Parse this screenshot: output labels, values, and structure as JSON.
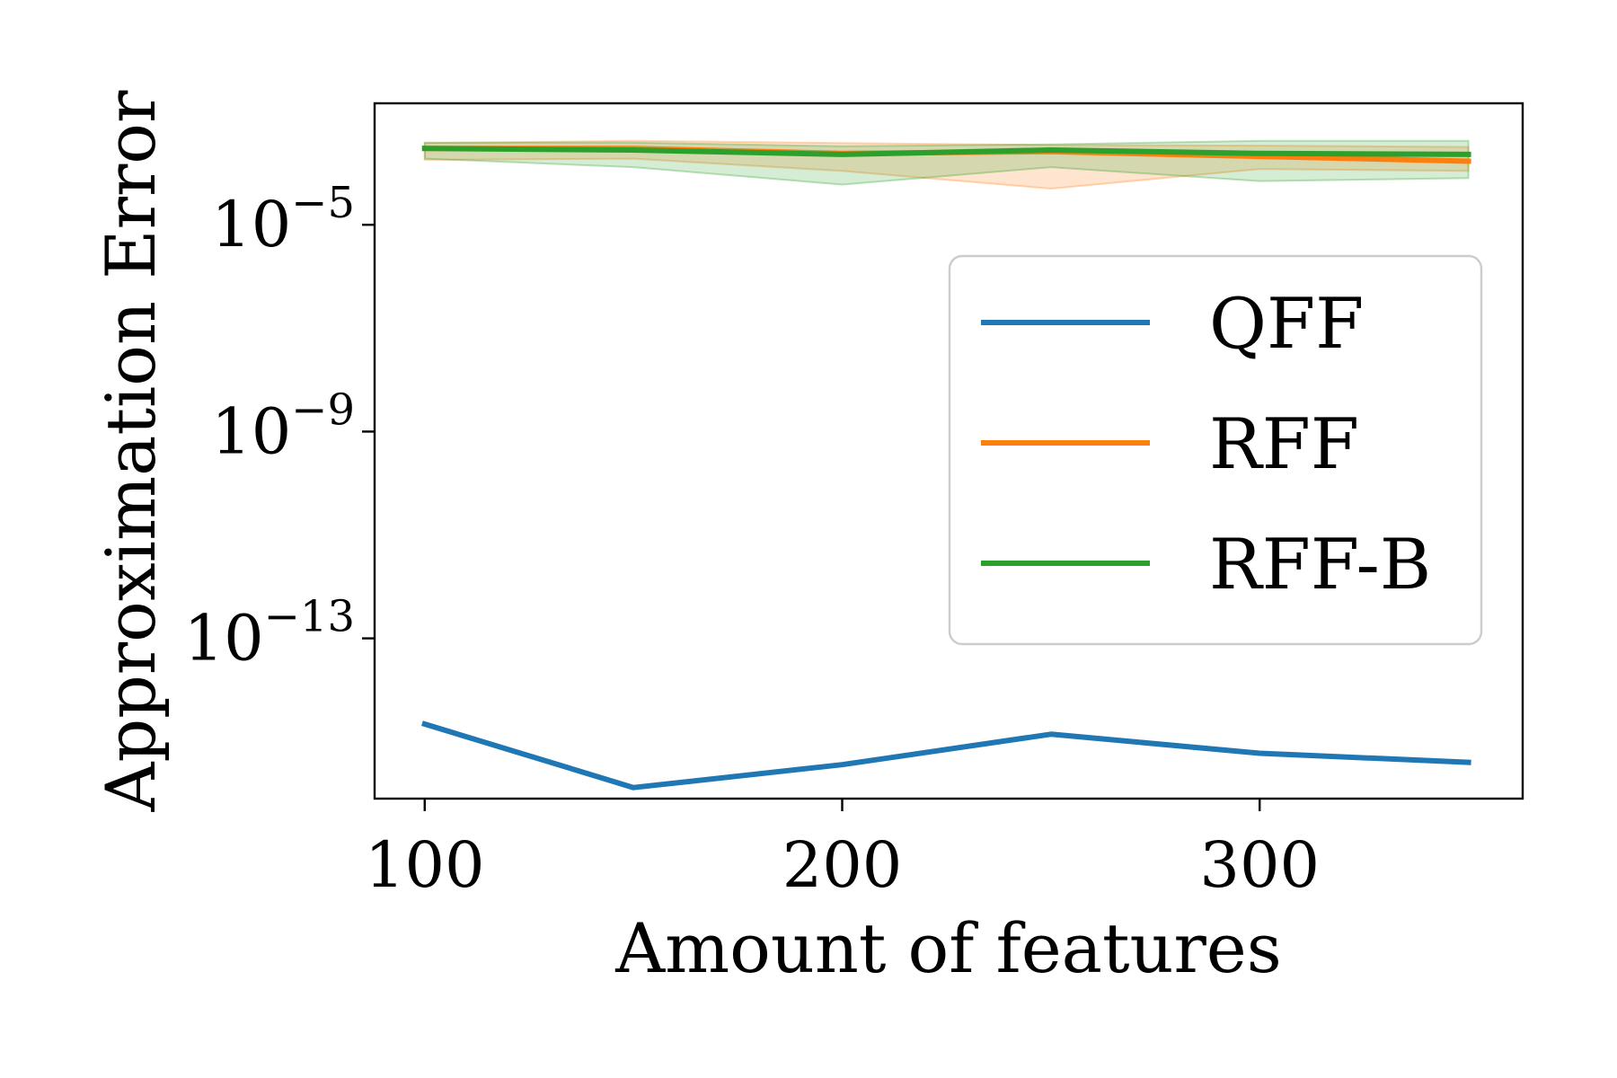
{
  "chart_data": {
    "type": "line",
    "title": "",
    "xlabel": "Amount of features",
    "ylabel": "Approximation Error",
    "x": [
      100,
      150,
      200,
      250,
      300,
      350
    ],
    "xlim": [
      88,
      363
    ],
    "xticks": [
      100,
      200,
      300
    ],
    "xtick_labels": [
      "100",
      "200",
      "300"
    ],
    "yscale": "log",
    "ylim_exp": [
      -16.1,
      -2.65
    ],
    "yticks_exp": [
      -5,
      -9,
      -13
    ],
    "ytick_labels": [
      {
        "base": "10",
        "exp": "−5"
      },
      {
        "base": "10",
        "exp": "−9"
      },
      {
        "base": "10",
        "exp": "−13"
      }
    ],
    "grid": false,
    "legend_position": "center-right",
    "series": [
      {
        "name": "QFF",
        "color": "#1f77b4",
        "y": [
          2.2e-15,
          1.3e-16,
          3.6e-16,
          1.4e-15,
          6e-16,
          4e-16
        ]
      },
      {
        "name": "RFF",
        "color": "#ff7f0e",
        "y": [
          0.0003,
          0.0003,
          0.00024,
          0.00026,
          0.00021,
          0.00017
        ],
        "band_upper": [
          0.00038,
          0.00042,
          0.00038,
          0.00035,
          0.00034,
          0.00032
        ],
        "band_lower": [
          0.00018,
          0.00019,
          0.00011,
          5e-05,
          0.00012,
          0.00011
        ]
      },
      {
        "name": "RFF-B",
        "color": "#2ca02c",
        "y": [
          0.0003,
          0.00028,
          0.00023,
          0.00028,
          0.00024,
          0.00023
        ],
        "band_upper": [
          0.00039,
          0.00039,
          0.00033,
          0.00036,
          0.00042,
          0.00042
        ],
        "band_lower": [
          0.00019,
          0.00013,
          6e-05,
          0.00013,
          7e-05,
          8e-05
        ]
      }
    ]
  }
}
